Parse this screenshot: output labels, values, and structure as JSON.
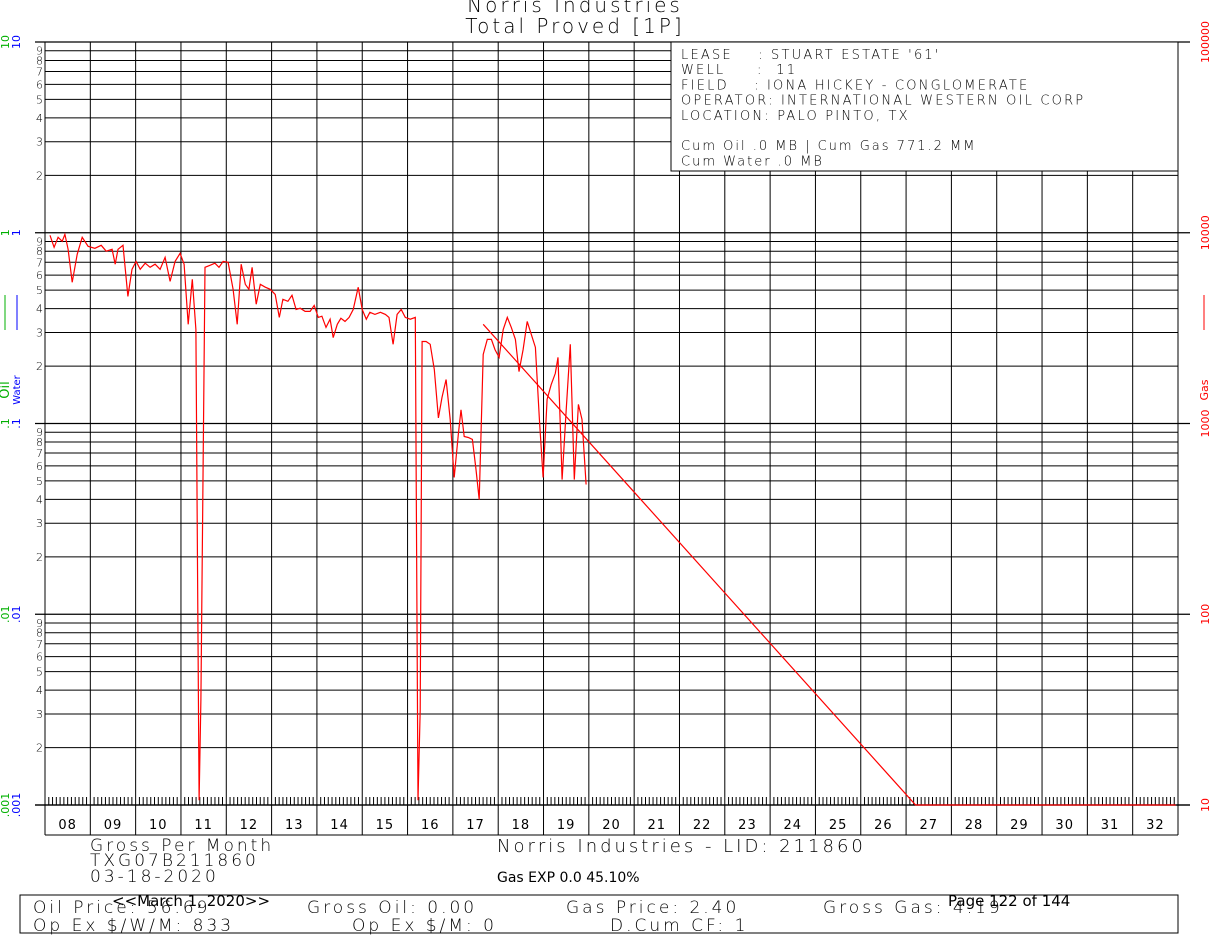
{
  "chart_data": {
    "type": "line",
    "title": "Norris Industries",
    "subtitle": "Total Proved [1P]",
    "log_scale": true,
    "grid": true,
    "xlim": [
      2008,
      2033
    ],
    "xticks": [
      {
        "value": 2008.5,
        "label": "08"
      },
      {
        "value": 2009.5,
        "label": "09"
      },
      {
        "value": 2010.5,
        "label": "10"
      },
      {
        "value": 2011.5,
        "label": "11"
      },
      {
        "value": 2012.5,
        "label": "12"
      },
      {
        "value": 2013.5,
        "label": "13"
      },
      {
        "value": 2014.5,
        "label": "14"
      },
      {
        "value": 2015.5,
        "label": "15"
      },
      {
        "value": 2016.5,
        "label": "16"
      },
      {
        "value": 2017.5,
        "label": "17"
      },
      {
        "value": 2018.5,
        "label": "18"
      },
      {
        "value": 2019.5,
        "label": "19"
      },
      {
        "value": 2020.5,
        "label": "20"
      },
      {
        "value": 2021.5,
        "label": "21"
      },
      {
        "value": 2022.5,
        "label": "22"
      },
      {
        "value": 2023.5,
        "label": "23"
      },
      {
        "value": 2024.5,
        "label": "24"
      },
      {
        "value": 2025.5,
        "label": "25"
      },
      {
        "value": 2026.5,
        "label": "26"
      },
      {
        "value": 2027.5,
        "label": "27"
      },
      {
        "value": 2028.5,
        "label": "28"
      },
      {
        "value": 2029.5,
        "label": "29"
      },
      {
        "value": 2030.5,
        "label": "30"
      },
      {
        "value": 2031.5,
        "label": "31"
      },
      {
        "value": 2032.5,
        "label": "32"
      }
    ],
    "ylim": [
      10,
      100000
    ],
    "yticks": [
      10,
      100,
      1000,
      10000,
      100000
    ],
    "y2lim": [
      0.001,
      10
    ],
    "y2ticks": [
      {
        "value": 0.001,
        "label": ".001"
      },
      {
        "value": 0.01,
        "label": ".01"
      },
      {
        "value": 0.1,
        "label": ".1"
      },
      1,
      10
    ],
    "y2minor": [
      2,
      3,
      4,
      5,
      6,
      7,
      8,
      9
    ],
    "left_labels": [
      {
        "text": "Oil",
        "color": "#00b000"
      },
      {
        "text": "Water",
        "color": "#0000ff"
      }
    ],
    "series": [
      {
        "name": "Gas",
        "color": "#ff0000",
        "x": [
          2008.11,
          2008.2,
          2008.29,
          2008.38,
          2008.44,
          2008.51,
          2008.6,
          2008.71,
          2008.82,
          2008.95,
          2009.1,
          2009.24,
          2009.35,
          2009.48,
          2009.55,
          2009.61,
          2009.72,
          2009.83,
          2009.92,
          2010.01,
          2010.1,
          2010.21,
          2010.32,
          2010.43,
          2010.54,
          2010.65,
          2010.76,
          2010.87,
          2010.98,
          2011.07,
          2011.16,
          2011.25,
          2011.33,
          2011.4,
          2011.44,
          2011.53,
          2011.64,
          2011.75,
          2011.84,
          2011.93,
          2012.04,
          2012.15,
          2012.24,
          2012.33,
          2012.42,
          2012.5,
          2012.57,
          2012.66,
          2012.75,
          2012.86,
          2012.97,
          2013.08,
          2013.17,
          2013.25,
          2013.36,
          2013.45,
          2013.54,
          2013.63,
          2013.74,
          2013.85,
          2013.94,
          2014.03,
          2014.11,
          2014.2,
          2014.29,
          2014.36,
          2014.45,
          2014.53,
          2014.62,
          2014.71,
          2014.8,
          2014.91,
          2015.0,
          2015.09,
          2015.17,
          2015.28,
          2015.4,
          2015.51,
          2015.59,
          2015.68,
          2015.77,
          2015.86,
          2015.95,
          2016.06,
          2016.17,
          2016.23,
          2016.28,
          2016.32,
          2016.41,
          2016.5,
          2016.59,
          2016.68,
          2016.76,
          2016.85,
          2016.94,
          2017.03,
          2017.12,
          2017.18,
          2017.25,
          2017.34,
          2017.43,
          2017.51,
          2017.58,
          2017.67,
          2017.76,
          2017.85,
          2017.93,
          2018.02,
          2018.11,
          2018.2,
          2018.29,
          2018.38,
          2018.46,
          2018.55,
          2018.64,
          2018.73,
          2018.82,
          2018.91,
          2018.99,
          2019.08,
          2019.17,
          2019.26,
          2019.32,
          2019.41,
          2019.5,
          2019.59,
          2019.68,
          2019.77,
          2019.85,
          2019.94
        ],
        "values": [
          9700,
          8390,
          9470,
          9020,
          9820,
          8190,
          5500,
          7710,
          9470,
          8490,
          8290,
          8590,
          8000,
          8190,
          6840,
          8190,
          8590,
          4640,
          6430,
          7080,
          6430,
          6920,
          6590,
          6840,
          6430,
          7430,
          5560,
          7080,
          7800,
          6840,
          3310,
          5700,
          3110,
          10.6,
          35.6,
          6590,
          6750,
          6920,
          6590,
          7080,
          7000,
          5050,
          3310,
          6840,
          5370,
          5050,
          6590,
          4220,
          5370,
          5180,
          5050,
          4750,
          3600,
          4480,
          4370,
          4700,
          3960,
          4020,
          3870,
          3870,
          4160,
          3600,
          3650,
          3190,
          3520,
          2820,
          3310,
          3560,
          3430,
          3600,
          3960,
          5180,
          3960,
          3520,
          3830,
          3730,
          3830,
          3730,
          3600,
          2600,
          3730,
          3960,
          3600,
          3520,
          3600,
          10.6,
          31.5,
          2690,
          2690,
          2600,
          1920,
          1070,
          1370,
          1700,
          1050,
          521,
          875,
          1180,
          855,
          845,
          825,
          574,
          399,
          2300,
          2760,
          2760,
          2440,
          2220,
          3110,
          3600,
          3190,
          2760,
          1870,
          2440,
          3430,
          2930,
          2510,
          1050,
          521,
          1340,
          1600,
          1830,
          2220,
          508,
          1180,
          2600,
          508,
          1260,
          1050,
          479
        ]
      }
    ],
    "forecast": {
      "color": "#ff0000",
      "x": [
        2017.67,
        2027.21,
        2032.95
      ],
      "values": [
        3310,
        10,
        10
      ]
    },
    "info_lines": [
      "LEASE    : STUART ESTATE '61'",
      "WELL     :  11",
      "FIELD    : IONA HICKEY - CONGLOMERATE",
      "OPERATOR: INTERNATIONAL WESTERN OIL CORP",
      "LOCATION: PALO PINTO, TX"
    ],
    "cum_lines": [
      "Cum Oil .0 MB | Cum Gas 771.2 MM",
      "Cum Water .0 MB"
    ],
    "footer": {
      "basis": "Gross Per Month",
      "id": "TXG07B211860",
      "date": "03-18-2020",
      "company": "Norris Industries - LID: 211860",
      "gas_exp": "Gas EXP 0.0 45.10%",
      "as_of": "<<March 1, 2020>>",
      "page": "Page 122 of 144",
      "row1": [
        "Oil Price: 56.69",
        "Gross Oil: 0.00",
        "Gas Price: 2.40",
        "Gross Gas: 4.19"
      ],
      "row2": [
        "Op Ex $/W/M: 833",
        "Op Ex $/M: 0",
        "D.Cum CF: 1"
      ]
    }
  }
}
